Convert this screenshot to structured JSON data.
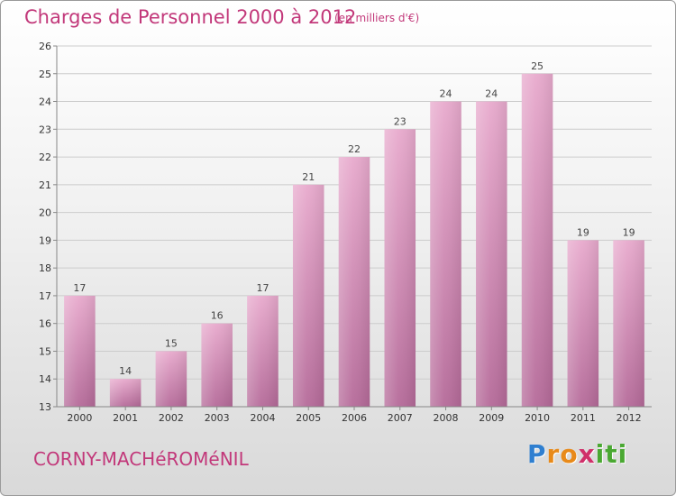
{
  "header": {
    "title": "Charges de Personnel 2000 à 2012",
    "subtitle": "(en milliers d'€)"
  },
  "footer": {
    "commune": "CORNY-MACHéROMéNIL",
    "logo_letters": [
      "P",
      "r",
      "o",
      "x",
      "i",
      "t",
      "i"
    ],
    "logo_colors": [
      "#2f7fd0",
      "#e88a1a",
      "#e88a1a",
      "#d0306a",
      "#4aa832",
      "#4aa832",
      "#4aa832"
    ]
  },
  "colors": {
    "bar_light": "#e8aacd",
    "bar_dark": "#b56a99",
    "grid": "#cccccc",
    "axis": "#888888"
  },
  "chart_data": {
    "type": "bar",
    "title": "Charges de Personnel 2000 à 2012",
    "subtitle": "(en milliers d'€)",
    "categories": [
      "2000",
      "2001",
      "2002",
      "2003",
      "2004",
      "2005",
      "2006",
      "2007",
      "2008",
      "2009",
      "2010",
      "2011",
      "2012"
    ],
    "values": [
      17,
      14,
      15,
      16,
      17,
      21,
      22,
      23,
      24,
      24,
      25,
      19,
      19
    ],
    "ylim": [
      13,
      26
    ],
    "yticks": [
      13,
      14,
      15,
      16,
      17,
      18,
      19,
      20,
      21,
      22,
      23,
      24,
      25,
      26
    ],
    "grid": true,
    "xlabel": "",
    "ylabel": ""
  }
}
